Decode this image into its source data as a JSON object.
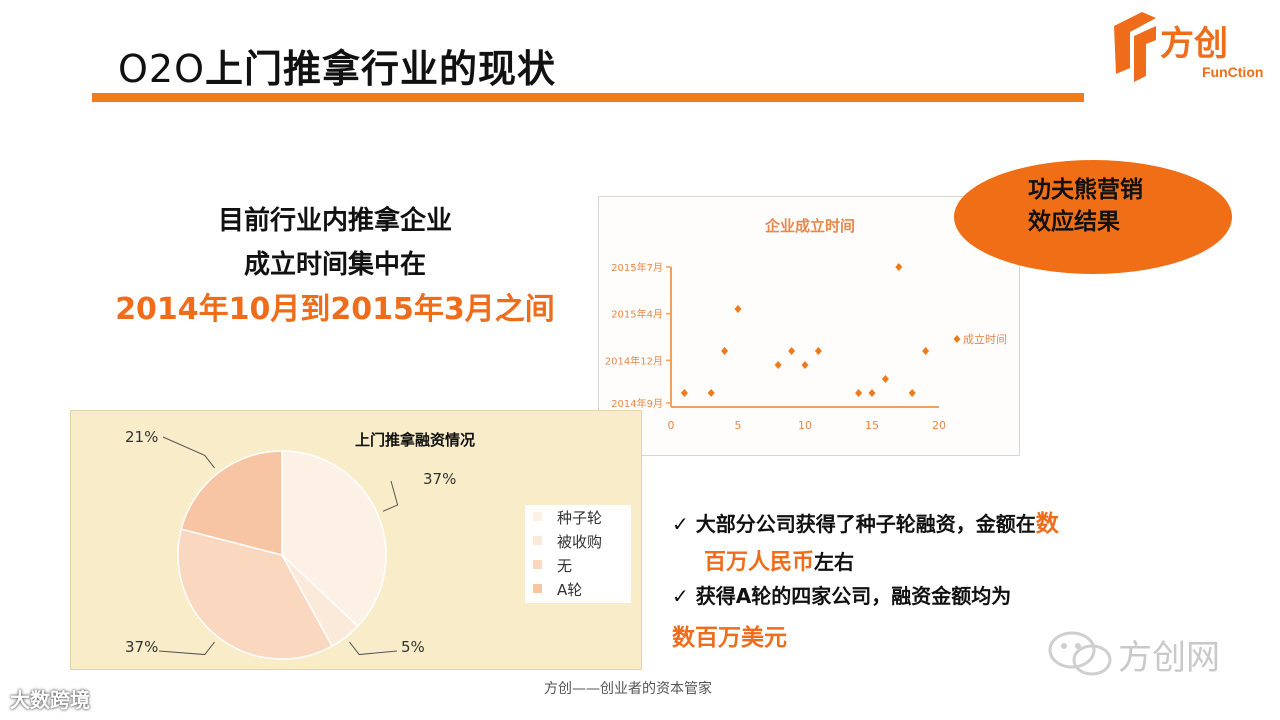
{
  "slide": {
    "title_prefix": "O2O",
    "title_main": "上门推拿行业的现状"
  },
  "logo": {
    "name": "方创",
    "sub": "FunCtion"
  },
  "headline": {
    "line1": "目前行业内推拿企业",
    "line2": "成立时间集中在",
    "line3": "2014年10月到2015年3月之间"
  },
  "callout": {
    "line1": "功夫熊营销",
    "line2": "效应结果"
  },
  "bullets": [
    {
      "check": "✓",
      "text_a": "大部分公司获得了种子轮融资，金额在",
      "hl_a": "数",
      "hl_b": "百万人民币",
      "text_b": "左右"
    },
    {
      "check": "✓",
      "text_a": "获得A轮的四家公司，融资金额均为",
      "hl_big": "数百万美元"
    }
  ],
  "chart_data": [
    {
      "type": "scatter",
      "title": "企业成立时间",
      "x_ticks": [
        0,
        5,
        10,
        15,
        20
      ],
      "y_ticks": [
        "2014年9月",
        "2014年12月",
        "2015年4月",
        "2015年7月"
      ],
      "xlim": [
        0,
        20
      ],
      "legend": {
        "label": "成立时间",
        "position": "right"
      },
      "series": [
        {
          "name": "成立时间",
          "points": [
            [
              1,
              0.1
            ],
            [
              3,
              0.1
            ],
            [
              4,
              0.4
            ],
            [
              5,
              0.7
            ],
            [
              8,
              0.3
            ],
            [
              9,
              0.4
            ],
            [
              10,
              0.3
            ],
            [
              11,
              0.4
            ],
            [
              14,
              0.1
            ],
            [
              15,
              0.1
            ],
            [
              16,
              0.2
            ],
            [
              17,
              1.0
            ],
            [
              18,
              0.1
            ],
            [
              19,
              0.4
            ]
          ]
        }
      ],
      "colors": {
        "marker": "#f07a1a",
        "axis": "#f2a060",
        "text": "#e8884a"
      }
    },
    {
      "type": "pie",
      "title": "上门推拿融资情况",
      "labels": [
        "种子轮",
        "被收购",
        "无",
        "A轮"
      ],
      "values": [
        37,
        5,
        37,
        21
      ],
      "value_labels": [
        "37%",
        "5%",
        "37%",
        "21%"
      ],
      "legend_position": "right",
      "colors": [
        "#fdf1e6",
        "#fbe9d9",
        "#fad8c0",
        "#f7c5a4"
      ]
    }
  ],
  "footer": "方创——创业者的资本管家",
  "watermark": "方创网",
  "corner_watermark": "大数跨境",
  "accent_color": "#ef6c1a"
}
